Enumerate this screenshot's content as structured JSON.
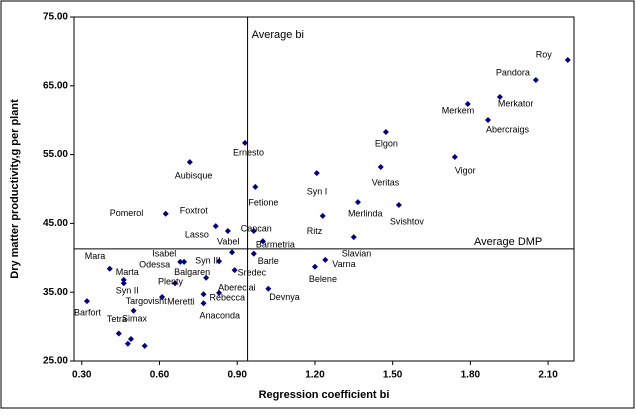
{
  "chart_data": {
    "type": "scatter",
    "x_label": "Regression coefficient bi",
    "y_label": "Dry matter productivity,g per plant",
    "color": "#000080",
    "xlim": [
      0.27,
      2.2
    ],
    "ylim": [
      25,
      75
    ],
    "xticks": [
      {
        "value": 0.3,
        "label": "0.30"
      },
      {
        "value": 0.6,
        "label": "0.60"
      },
      {
        "value": 0.9,
        "label": "0.90"
      },
      {
        "value": 1.2,
        "label": "1.20"
      },
      {
        "value": 1.5,
        "label": "1.50"
      },
      {
        "value": 1.8,
        "label": "1.80"
      },
      {
        "value": 2.1,
        "label": "2.10"
      }
    ],
    "yticks": [
      {
        "value": 25,
        "label": "25.00"
      },
      {
        "value": 35,
        "label": "35.00"
      },
      {
        "value": 45,
        "label": "45.00"
      },
      {
        "value": 55,
        "label": "55.00"
      },
      {
        "value": 65,
        "label": "65.00"
      },
      {
        "value": 75,
        "label": "75.00"
      }
    ],
    "reference_lines": [
      {
        "label": "Average bi",
        "x": 0.94
      },
      {
        "label": "Average DMP",
        "y": 41.3
      }
    ],
    "labels": [
      "Roy",
      "Pandora",
      "Merkator",
      "Merkem",
      "Abercraigs",
      "Elgon",
      "Vigor",
      "Veritas",
      "Svishtov",
      "Merlinda",
      "Syn I",
      "Ritz",
      "Slavian",
      "Varna",
      "Belene",
      "Ernesto",
      "Fetione",
      "Aubisque",
      "Pomerol",
      "Foxtrot",
      "Lasso",
      "Cancan",
      "Barmetria",
      "Vabel",
      "Isabel",
      "Odessa",
      "Syn III",
      "Barle",
      "Balgaren",
      "Sredec",
      "Mara",
      "Marta",
      "Syn II",
      "Plenty",
      "Abereclai",
      "Rebecca",
      "Meretti",
      "Devnya",
      "Anaconda",
      "Targovisht",
      "Barfort",
      "Tetra",
      "Simax",
      null,
      null
    ],
    "x": [
      2.176,
      2.053,
      1.914,
      1.79,
      1.868,
      1.474,
      1.74,
      1.454,
      1.524,
      1.366,
      1.207,
      1.23,
      1.35,
      1.24,
      1.2,
      0.93,
      0.97,
      0.717,
      0.624,
      0.817,
      0.864,
      0.964,
      0.999,
      0.88,
      0.68,
      0.695,
      0.83,
      0.964,
      0.78,
      0.89,
      0.408,
      0.462,
      0.462,
      0.66,
      0.83,
      0.77,
      0.61,
      1.02,
      0.77,
      0.5,
      0.32,
      0.443,
      0.49,
      0.478,
      0.543
    ],
    "values": [
      68.75,
      65.84,
      63.37,
      62.35,
      60.03,
      58.28,
      54.65,
      53.2,
      47.67,
      48.1,
      52.3,
      46.1,
      43.0,
      39.7,
      38.7,
      56.7,
      50.3,
      53.9,
      46.4,
      44.6,
      43.9,
      43.9,
      42.4,
      40.8,
      39.4,
      39.4,
      39.5,
      40.6,
      37.1,
      38.2,
      38.4,
      36.8,
      36.3,
      36.3,
      34.9,
      34.7,
      34.3,
      35.5,
      33.4,
      32.3,
      33.7,
      29.0,
      28.2,
      27.5,
      27.2
    ]
  }
}
